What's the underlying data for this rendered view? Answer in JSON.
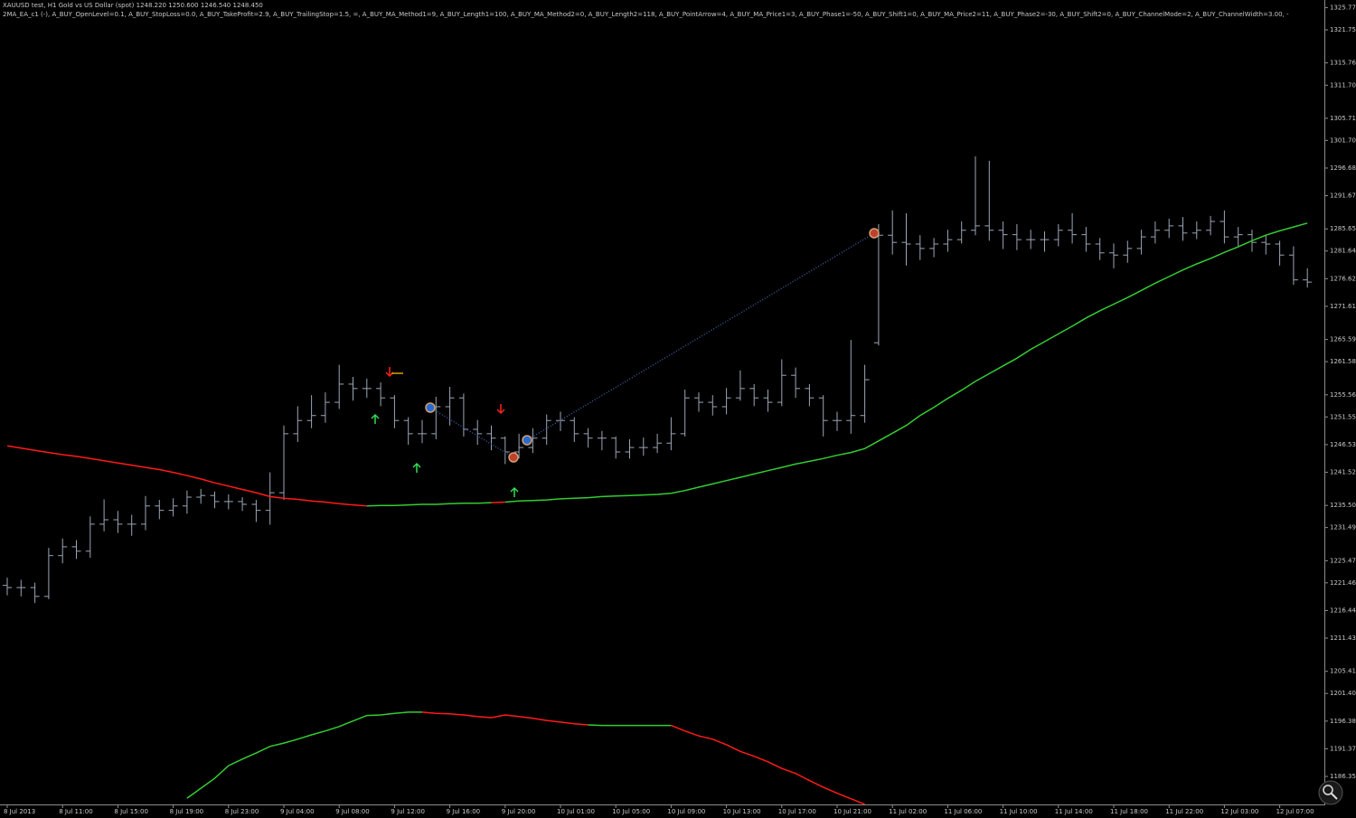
{
  "chart_data": {
    "type": "ohlc",
    "title": "XAUUSD test, H1  Gold vs US Dollar (spot)  1248.220 1250.600 1246.540 1248.450",
    "subtitle": "2MA_EA_c1 (-), A_BUY_OpenLevel=0.1, A_BUY_StopLoss=0.0, A_BUY_TakeProfit=2.9, A_BUY_TrailingStop=1.5, =, A_BUY_MA_Method1=9, A_BUY_Length1=100, A_BUY_MA_Method2=0, A_BUY_Length2=118, A_BUY_PointArrow=4, A_BUY_MA_Price1=3, A_BUY_Phase1=-50, A_BUY_Shift1=0, A_BUY_MA_Price2=11, A_BUY_Phase2=-30, A_BUY_Shift2=0, A_BUY_ChannelMode=2, A_BUY_ChannelWidth=3.00, -",
    "color": "#9ba6b6",
    "categories": [
      "8 Jul 2013",
      null,
      null,
      null,
      "8 Jul 11:00",
      null,
      null,
      null,
      "8 Jul 15:00",
      null,
      null,
      null,
      "8 Jul 19:00",
      null,
      null,
      null,
      "8 Jul 23:00",
      null,
      null,
      null,
      "9 Jul 04:00",
      null,
      null,
      null,
      "9 Jul 08:00",
      null,
      null,
      null,
      "9 Jul 12:00",
      null,
      null,
      null,
      "9 Jul 16:00",
      null,
      null,
      null,
      "9 Jul 20:00",
      null,
      null,
      null,
      "10 Jul 01:00",
      null,
      null,
      null,
      "10 Jul 05:00",
      null,
      null,
      null,
      "10 Jul 09:00",
      null,
      null,
      null,
      "10 Jul 13:00",
      null,
      null,
      null,
      "10 Jul 17:00",
      null,
      null,
      null,
      "10 Jul 21:00",
      null,
      null,
      null,
      "11 Jul 02:00",
      null,
      null,
      null,
      "11 Jul 06:00",
      null,
      null,
      null,
      "11 Jul 10:00",
      null,
      null,
      null,
      "11 Jul 14:00",
      null,
      null,
      null,
      "11 Jul 18:00",
      null,
      null,
      null,
      "11 Jul 22:00",
      null,
      null,
      null,
      "12 Jul 03:00",
      null,
      null,
      null,
      "12 Jul 07:00",
      null,
      null
    ],
    "open": [
      1221.0,
      1220.6,
      1220.6,
      1219.0,
      1226.4,
      1228.0,
      1227.2,
      1232.1,
      1232.9,
      1232.1,
      1232.1,
      1235.4,
      1234.6,
      1235.4,
      1237.0,
      1237.3,
      1236.2,
      1236.2,
      1235.7,
      1234.6,
      1237.8,
      1248.5,
      1250.9,
      1251.8,
      1254.2,
      1257.5,
      1256.7,
      1256.7,
      1255.0,
      1250.9,
      1248.5,
      1248.5,
      1253.4,
      1255.0,
      1249.3,
      1248.5,
      1247.7,
      1245.2,
      1246.0,
      1247.7,
      1250.9,
      1250.9,
      1248.5,
      1247.7,
      1247.7,
      1245.2,
      1246.0,
      1246.0,
      1246.8,
      1248.5,
      1255.0,
      1254.2,
      1253.4,
      1255.0,
      1256.7,
      1255.0,
      1254.2,
      1259.1,
      1256.7,
      1255.0,
      1250.9,
      1250.9,
      1251.8,
      1265.0,
      1284.5,
      1283.2,
      1282.9,
      1282.1,
      1282.9,
      1283.7,
      1285.4,
      1286.2,
      1285.4,
      1284.6,
      1283.7,
      1283.7,
      1283.7,
      1285.4,
      1284.6,
      1282.9,
      1281.3,
      1280.9,
      1282.1,
      1284.2,
      1285.4,
      1286.2,
      1284.9,
      1285.4,
      1287.0,
      1284.2,
      1284.6,
      1283.2,
      1282.9,
      1280.9,
      1276.4
    ],
    "high": [
      1222.4,
      1222.0,
      1221.5,
      1227.8,
      1229.5,
      1229.2,
      1233.5,
      1236.6,
      1234.5,
      1233.8,
      1237.2,
      1236.5,
      1236.8,
      1238.2,
      1238.5,
      1238.0,
      1237.5,
      1237.0,
      1236.5,
      1241.5,
      1250.0,
      1253.5,
      1255.5,
      1256.0,
      1261.0,
      1258.8,
      1258.5,
      1257.8,
      1255.5,
      1251.5,
      1251.0,
      1255.2,
      1257.0,
      1255.8,
      1251.0,
      1250.0,
      1248.0,
      1248.5,
      1249.5,
      1252.0,
      1252.5,
      1251.5,
      1249.5,
      1249.0,
      1248.0,
      1247.5,
      1247.8,
      1248.5,
      1251.5,
      1256.5,
      1256.0,
      1255.5,
      1256.8,
      1260.0,
      1257.5,
      1256.5,
      1262.0,
      1260.5,
      1257.5,
      1255.5,
      1252.5,
      1265.5,
      1261.0,
      1286.5,
      1289.0,
      1288.5,
      1284.5,
      1284.0,
      1285.5,
      1287.0,
      1298.8,
      1298.0,
      1287.0,
      1286.5,
      1285.5,
      1285.2,
      1286.5,
      1288.5,
      1286.0,
      1284.0,
      1283.0,
      1283.5,
      1285.5,
      1287.0,
      1287.5,
      1287.8,
      1287.0,
      1288.0,
      1289.0,
      1286.0,
      1285.5,
      1284.5,
      1283.5,
      1282.5,
      1278.5
    ],
    "low": [
      1219.2,
      1219.0,
      1217.8,
      1218.5,
      1225.0,
      1225.8,
      1226.0,
      1230.8,
      1230.5,
      1230.0,
      1231.0,
      1233.0,
      1233.5,
      1234.0,
      1235.8,
      1235.0,
      1234.8,
      1234.5,
      1232.5,
      1232.0,
      1236.5,
      1247.0,
      1249.5,
      1250.5,
      1253.0,
      1254.5,
      1255.0,
      1253.5,
      1249.5,
      1246.5,
      1246.8,
      1247.5,
      1250.0,
      1248.0,
      1246.5,
      1245.5,
      1243.0,
      1244.0,
      1245.0,
      1246.5,
      1249.0,
      1247.0,
      1246.0,
      1245.5,
      1244.0,
      1244.0,
      1244.5,
      1245.0,
      1245.5,
      1248.0,
      1252.5,
      1251.8,
      1252.0,
      1254.5,
      1253.5,
      1252.5,
      1253.5,
      1255.0,
      1253.5,
      1248.0,
      1249.0,
      1248.5,
      1250.5,
      1264.5,
      1281.0,
      1279.0,
      1280.0,
      1280.5,
      1281.5,
      1283.0,
      1284.5,
      1283.5,
      1282.0,
      1281.8,
      1282.0,
      1281.5,
      1282.5,
      1283.0,
      1281.5,
      1280.0,
      1278.5,
      1279.5,
      1281.0,
      1283.0,
      1284.0,
      1283.5,
      1283.8,
      1284.5,
      1283.0,
      1282.5,
      1281.5,
      1281.0,
      1279.0,
      1275.5,
      1275.0
    ],
    "close": [
      1220.6,
      1220.6,
      1219.0,
      1226.4,
      1228.0,
      1227.2,
      1232.1,
      1232.9,
      1232.1,
      1232.1,
      1235.4,
      1234.6,
      1235.4,
      1237.0,
      1237.3,
      1236.2,
      1236.2,
      1235.7,
      1234.6,
      1237.8,
      1248.5,
      1250.9,
      1251.8,
      1254.2,
      1257.5,
      1256.7,
      1256.7,
      1255.0,
      1250.9,
      1248.5,
      1248.5,
      1253.4,
      1255.0,
      1249.3,
      1248.5,
      1247.7,
      1245.2,
      1246.0,
      1247.7,
      1250.9,
      1250.9,
      1248.5,
      1247.7,
      1247.7,
      1245.2,
      1246.0,
      1246.0,
      1246.8,
      1248.5,
      1255.0,
      1254.2,
      1253.4,
      1255.0,
      1256.7,
      1255.0,
      1254.2,
      1259.1,
      1256.7,
      1255.0,
      1250.9,
      1250.9,
      1251.8,
      1258.3,
      1284.5,
      1283.2,
      1282.9,
      1282.1,
      1282.9,
      1283.7,
      1285.4,
      1286.2,
      1285.4,
      1284.6,
      1283.7,
      1283.7,
      1283.7,
      1285.4,
      1284.6,
      1282.9,
      1281.3,
      1280.9,
      1282.1,
      1284.2,
      1285.4,
      1286.2,
      1284.9,
      1285.4,
      1287.0,
      1284.2,
      1284.6,
      1283.2,
      1282.9,
      1280.9,
      1276.4,
      1276.0
    ],
    "series": [
      {
        "values": [
          1246.3,
          1245.9,
          1245.5,
          1245.1,
          1244.7,
          1244.4,
          1244.0,
          1243.6,
          1243.2,
          1242.8,
          1242.4,
          1242.0,
          1241.5,
          1240.9,
          1240.3,
          1239.6,
          1239.0,
          1238.4,
          1237.8,
          1237.1,
          1236.8,
          1236.6,
          1236.3,
          1236.1,
          1235.8,
          1235.6,
          1235.4,
          1235.5,
          1235.5,
          1235.6,
          1235.7,
          1235.7,
          1235.8,
          1235.9,
          1235.9,
          1236.0,
          1236.1,
          1236.3,
          1236.4,
          1236.5,
          1236.7,
          1236.8,
          1236.9,
          1237.1,
          1237.2,
          1237.3,
          1237.4,
          1237.5,
          1237.7,
          1238.2,
          1238.8,
          1239.4,
          1240.0,
          1240.6,
          1241.2,
          1241.8,
          1242.4,
          1243.0,
          1243.5,
          1244.0,
          1244.6,
          1245.1,
          1245.8,
          1247.2,
          1248.6,
          1250.0,
          1251.8,
          1253.3,
          1254.9,
          1256.4,
          1258.0,
          1259.4,
          1260.8,
          1262.2,
          1263.8,
          1265.2,
          1266.6,
          1268.0,
          1269.5,
          1270.8,
          1272.0,
          1273.2,
          1274.5,
          1275.8,
          1277.0,
          1278.2,
          1279.3,
          1280.3,
          1281.4,
          1282.4,
          1283.5,
          1284.5,
          1285.3,
          1286.0,
          1286.7
        ],
        "colors": [
          "#ff1a1a",
          "#ff1a1a",
          "#ff1a1a",
          "#ff1a1a",
          "#ff1a1a",
          "#ff1a1a",
          "#ff1a1a",
          "#ff1a1a",
          "#ff1a1a",
          "#ff1a1a",
          "#ff1a1a",
          "#ff1a1a",
          "#ff1a1a",
          "#ff1a1a",
          "#ff1a1a",
          "#ff1a1a",
          "#ff1a1a",
          "#ff1a1a",
          "#ff1a1a",
          "#ff1a1a",
          "#ff1a1a",
          "#ff1a1a",
          "#ff1a1a",
          "#ff1a1a",
          "#ff1a1a",
          "#ff1a1a",
          "#33cc33",
          "#33cc33",
          "#33cc33",
          "#33cc33",
          "#33cc33",
          "#33cc33",
          "#33cc33",
          "#33cc33",
          "#33cc33",
          "#ff1a1a",
          "#33cc33",
          "#33cc33",
          "#33cc33",
          "#33cc33",
          "#33cc33",
          "#33cc33",
          "#33cc33",
          "#33cc33",
          "#33cc33",
          "#33cc33",
          "#33cc33",
          "#33cc33",
          "#33cc33",
          "#33cc33",
          "#33cc33",
          "#33cc33",
          "#33cc33",
          "#33cc33",
          "#33cc33",
          "#33cc33",
          "#33cc33",
          "#33cc33",
          "#33cc33",
          "#33cc33",
          "#33cc33",
          "#33cc33",
          "#33cc33",
          "#33cc33",
          "#33cc33",
          "#33cc33",
          "#33cc33",
          "#33cc33",
          "#33cc33",
          "#33cc33",
          "#33cc33",
          "#33cc33",
          "#33cc33",
          "#33cc33",
          "#33cc33",
          "#33cc33",
          "#33cc33",
          "#33cc33",
          "#33cc33",
          "#33cc33",
          "#33cc33",
          "#33cc33",
          "#33cc33",
          "#33cc33",
          "#33cc33",
          "#33cc33",
          "#33cc33",
          "#33cc33",
          "#33cc33",
          "#33cc33",
          "#33cc33",
          "#33cc33",
          "#33cc33",
          "#33cc33",
          "#33cc33"
        ]
      },
      {
        "values": [
          null,
          null,
          null,
          null,
          null,
          null,
          null,
          null,
          null,
          null,
          null,
          null,
          null,
          1182.4,
          1184.2,
          1186.0,
          1188.3,
          1189.5,
          1190.6,
          1191.8,
          1192.4,
          1193.1,
          1193.9,
          1194.6,
          1195.4,
          1196.4,
          1197.4,
          1197.5,
          1197.8,
          1198.0,
          1198.0,
          1197.8,
          1197.7,
          1197.5,
          1197.2,
          1197.0,
          1197.5,
          1197.2,
          1196.9,
          1196.5,
          1196.2,
          1195.9,
          1195.7,
          1195.6,
          1195.6,
          1195.6,
          1195.6,
          1195.6,
          1195.6,
          1194.6,
          1193.7,
          1193.1,
          1192.1,
          1190.9,
          1190.0,
          1189.0,
          1187.8,
          1186.9,
          1185.6,
          1184.4,
          1183.3,
          1182.3,
          1181.3,
          null,
          null,
          null,
          null,
          null,
          null,
          null,
          null,
          null,
          null,
          null,
          null,
          null,
          null,
          null,
          null,
          null,
          null,
          null,
          null,
          null,
          null,
          null,
          null,
          null,
          null,
          null,
          null,
          null,
          null,
          null,
          null
        ],
        "colors": [
          "#33cc33",
          "#33cc33",
          "#33cc33",
          "#33cc33",
          "#33cc33",
          "#33cc33",
          "#33cc33",
          "#33cc33",
          "#33cc33",
          "#33cc33",
          "#33cc33",
          "#33cc33",
          "#33cc33",
          "#33cc33",
          "#33cc33",
          "#33cc33",
          "#33cc33",
          "#33cc33",
          "#33cc33",
          "#33cc33",
          "#33cc33",
          "#33cc33",
          "#33cc33",
          "#33cc33",
          "#33cc33",
          "#33cc33",
          "#33cc33",
          "#33cc33",
          "#33cc33",
          "#33cc33",
          "#ff1a1a",
          "#ff1a1a",
          "#ff1a1a",
          "#ff1a1a",
          "#ff1a1a",
          "#ff1a1a",
          "#ff1a1a",
          "#ff1a1a",
          "#ff1a1a",
          "#ff1a1a",
          "#ff1a1a",
          "#ff1a1a",
          "#33cc33",
          "#33cc33",
          "#33cc33",
          "#33cc33",
          "#33cc33",
          "#33cc33",
          "#ff1a1a",
          "#ff1a1a",
          "#ff1a1a",
          "#ff1a1a",
          "#ff1a1a",
          "#ff1a1a",
          "#ff1a1a",
          "#ff1a1a",
          "#ff1a1a",
          "#ff1a1a",
          "#ff1a1a",
          "#ff1a1a",
          "#ff1a1a",
          "#ff1a1a",
          "#ff1a1a",
          "#ff1a1a",
          "#ff1a1a",
          "#ff1a1a",
          "#ff1a1a",
          "#ff1a1a",
          "#ff1a1a",
          "#ff1a1a",
          "#ff1a1a",
          "#ff1a1a",
          "#ff1a1a",
          "#ff1a1a",
          "#ff1a1a",
          "#ff1a1a",
          "#ff1a1a",
          "#ff1a1a",
          "#ff1a1a",
          "#ff1a1a",
          "#ff1a1a",
          "#ff1a1a",
          "#ff1a1a",
          "#ff1a1a",
          "#ff1a1a",
          "#ff1a1a",
          "#ff1a1a",
          "#ff1a1a",
          "#ff1a1a",
          "#ff1a1a",
          "#ff1a1a",
          "#ff1a1a",
          "#ff1a1a",
          "#ff1a1a",
          "#ff1a1a"
        ]
      }
    ],
    "ylim": [
      1181.27,
      1327.16
    ],
    "yticks": [
      {
        "value": 1325.77,
        "label": "1325.77"
      },
      {
        "value": 1321.75,
        "label": "1321.75"
      },
      {
        "value": 1315.76,
        "label": "1315.76"
      },
      {
        "value": 1311.7,
        "label": "1311.70"
      },
      {
        "value": 1305.71,
        "label": "1305.71"
      },
      {
        "value": 1301.7,
        "label": "1301.70"
      },
      {
        "value": 1296.68,
        "label": "1296.68"
      },
      {
        "value": 1291.67,
        "label": "1291.67"
      },
      {
        "value": 1285.65,
        "label": "1285.65"
      },
      {
        "value": 1281.64,
        "label": "1281.64"
      },
      {
        "value": 1276.62,
        "label": "1276.62"
      },
      {
        "value": 1271.61,
        "label": "1271.61"
      },
      {
        "value": 1265.59,
        "label": "1265.59"
      },
      {
        "value": 1261.58,
        "label": "1261.58"
      },
      {
        "value": 1255.56,
        "label": "1255.56"
      },
      {
        "value": 1251.55,
        "label": "1251.55"
      },
      {
        "value": 1246.53,
        "label": "1246.53"
      },
      {
        "value": 1241.52,
        "label": "1241.52"
      },
      {
        "value": 1235.5,
        "label": "1235.50"
      },
      {
        "value": 1231.49,
        "label": "1231.49"
      },
      {
        "value": 1225.47,
        "label": "1225.47"
      },
      {
        "value": 1221.46,
        "label": "1221.46"
      },
      {
        "value": 1216.44,
        "label": "1216.44"
      },
      {
        "value": 1211.43,
        "label": "1211.43"
      },
      {
        "value": 1205.41,
        "label": "1205.41"
      },
      {
        "value": 1201.4,
        "label": "1201.40"
      },
      {
        "value": 1196.38,
        "label": "1196.38"
      },
      {
        "value": 1191.37,
        "label": "1191.37"
      },
      {
        "value": 1186.35,
        "label": "1186.35"
      }
    ],
    "grid": false
  }
}
